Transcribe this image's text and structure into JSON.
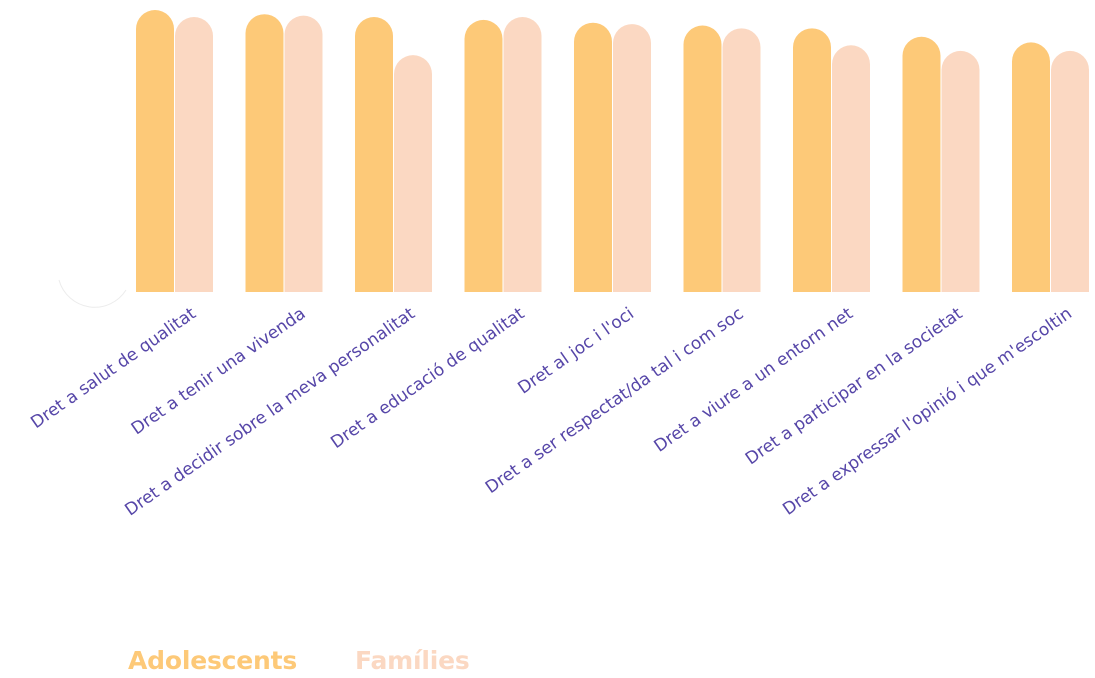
{
  "chart_data": {
    "type": "bar",
    "categories": [
      "Dret a salut de qualitat",
      "Dret a tenir una vivenda",
      "Dret a decidir sobre la meva personalitat",
      "Dret a educació de qualitat",
      "Dret al joc i l'oci",
      "Dret a ser respectat/da tal i com soc",
      "Dret a viure a un entorn net",
      "Dret a participar en la societat",
      "Dret a expressar l'opinió i que m'escoltin"
    ],
    "series": [
      {
        "name": "Adolescents",
        "color": "#FDC978",
        "values": [
          100,
          98.5,
          97.5,
          96.5,
          95.5,
          94.5,
          93.5,
          90.5,
          88.5
        ]
      },
      {
        "name": "Famílies",
        "color": "#FBD8C2",
        "values": [
          97.5,
          98,
          84,
          97.5,
          95,
          93.5,
          87.5,
          85.5,
          85.5
        ]
      }
    ],
    "ylim": [
      0,
      100
    ],
    "grid": false,
    "legend_position": "bottom-left",
    "label_color": "#5646A8"
  }
}
